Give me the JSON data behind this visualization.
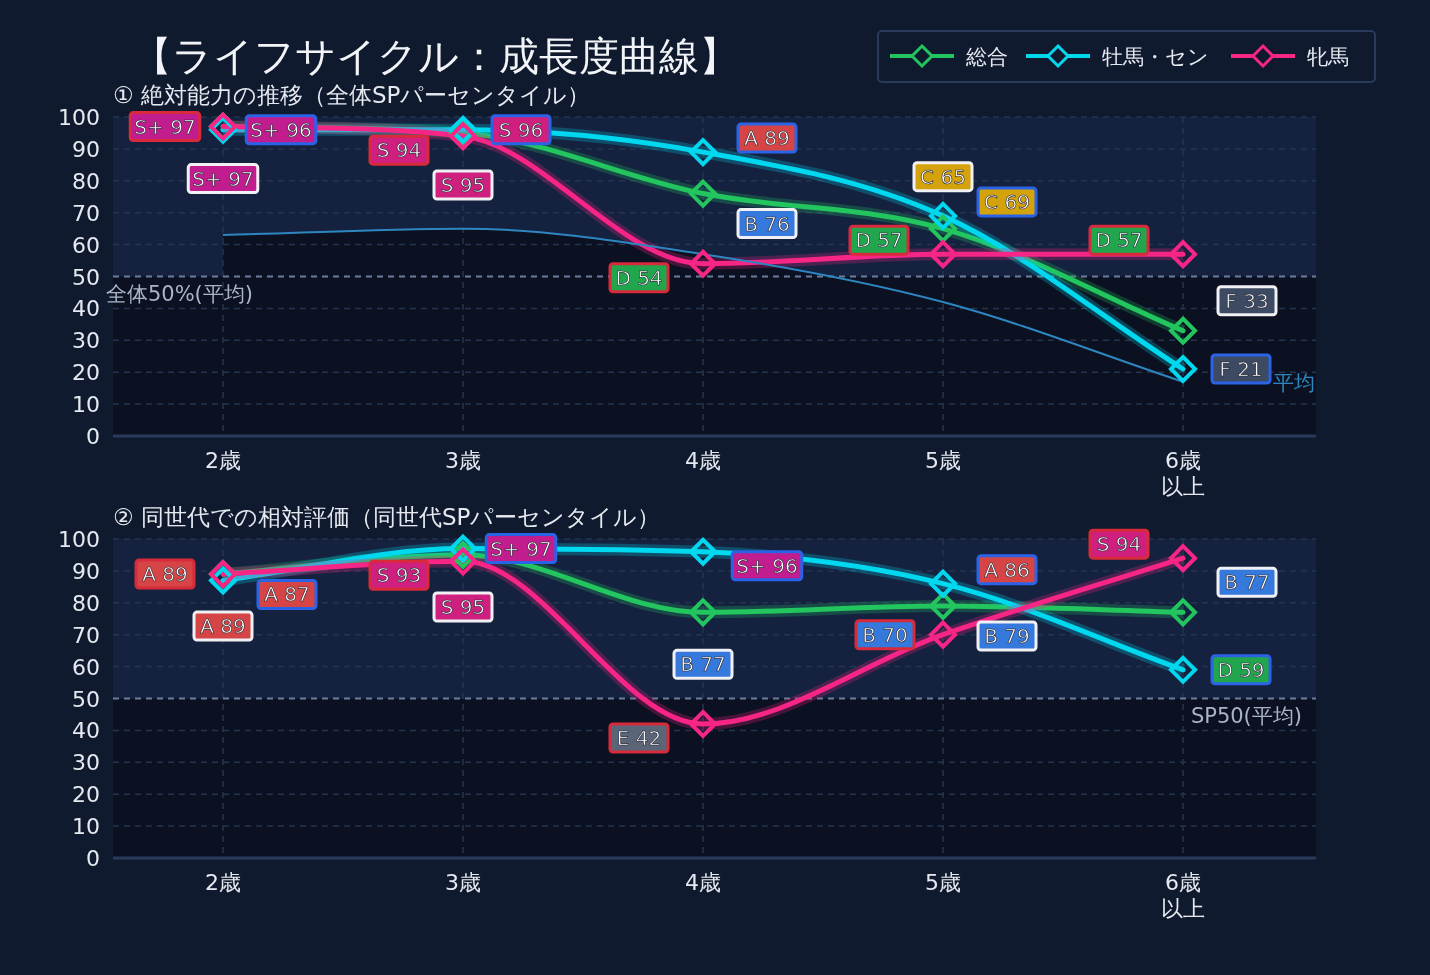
{
  "chart_data": [
    {
      "type": "line",
      "title": "【ライフサイクル：成長度曲線】",
      "subtitle": "① 絶対能力の推移（全体SPパーセンタイル）",
      "categories": [
        "2歳",
        "3歳",
        "4歳",
        "5歳",
        "6歳以上"
      ],
      "ylim": [
        0,
        100
      ],
      "yticks": [
        0,
        10,
        20,
        30,
        40,
        50,
        60,
        70,
        80,
        90,
        100
      ],
      "grid": true,
      "legend": "top right",
      "marker": "diamond",
      "series": [
        {
          "name": "総合",
          "color": "#22c55e",
          "values": [
            97,
            95,
            76,
            65,
            33
          ],
          "value_labels": [
            "S+ 97",
            "S 95",
            "B 76",
            "C 65",
            "F 33"
          ]
        },
        {
          "name": "牡馬・セン",
          "color": "#00d8f0",
          "values": [
            96,
            96,
            89,
            69,
            21
          ],
          "value_labels": [
            "S+ 96",
            "S 96",
            "A 89",
            "C 69",
            "F 21"
          ]
        },
        {
          "name": "牝馬",
          "color": "#f72585",
          "values": [
            97,
            94,
            54,
            57,
            57
          ],
          "value_labels": [
            "S+ 97",
            "S 94",
            "D 54",
            "D 57",
            "D 57"
          ]
        },
        {
          "name": "平均",
          "type": "area",
          "color": "#2e86c1",
          "marker": "none",
          "values": [
            63,
            65,
            57,
            42,
            17
          ]
        }
      ],
      "ref_lines": [
        {
          "axis": "y",
          "value": 50,
          "label": "全体50%(平均)",
          "color": "#6b7a99",
          "line_style": "dashed"
        }
      ],
      "bands": [
        {
          "axis": "y",
          "from": 50,
          "to": 100,
          "color": "#14223f"
        }
      ]
    },
    {
      "type": "line",
      "subtitle": "② 同世代での相対評価（同世代SPパーセンタイル）",
      "categories": [
        "2歳",
        "3歳",
        "4歳",
        "5歳",
        "6歳以上"
      ],
      "ylim": [
        0,
        100
      ],
      "yticks": [
        0,
        10,
        20,
        30,
        40,
        50,
        60,
        70,
        80,
        90,
        100
      ],
      "grid": true,
      "marker": "diamond",
      "series": [
        {
          "color": "#22c55e",
          "values": [
            89,
            95,
            77,
            79,
            77
          ],
          "value_labels": [
            "A 89",
            "S 95",
            "B 77",
            "B 79",
            "B 77"
          ]
        },
        {
          "color": "#00d8f0",
          "values": [
            87,
            97,
            96,
            86,
            59
          ],
          "value_labels": [
            "A 87",
            "S+ 97",
            "S+ 96",
            "A 86",
            "D 59"
          ]
        },
        {
          "color": "#f72585",
          "values": [
            89,
            93,
            42,
            70,
            94
          ],
          "value_labels": [
            "A 89",
            "S 93",
            "E 42",
            "B 70",
            "S 94"
          ]
        }
      ],
      "ref_lines": [
        {
          "axis": "y",
          "value": 50,
          "label": "SP50(平均)",
          "color": "#6b7a99",
          "line_style": "dashed"
        }
      ],
      "bands": [
        {
          "axis": "y",
          "from": 50,
          "to": 100,
          "color": "#14223f"
        }
      ]
    }
  ]
}
